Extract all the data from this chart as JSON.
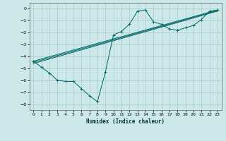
{
  "xlabel": "Humidex (Indice chaleur)",
  "background_color": "#cce8e8",
  "grid_color": "#aacccc",
  "line_color": "#006666",
  "xlim": [
    -0.5,
    23.5
  ],
  "ylim": [
    -8.5,
    0.5
  ],
  "xticks": [
    0,
    1,
    2,
    3,
    4,
    5,
    6,
    7,
    8,
    9,
    10,
    11,
    12,
    13,
    14,
    15,
    16,
    17,
    18,
    19,
    20,
    21,
    22,
    23
  ],
  "yticks": [
    0,
    -1,
    -2,
    -3,
    -4,
    -5,
    -6,
    -7,
    -8
  ],
  "series": [
    {
      "x": [
        0,
        1,
        2,
        3,
        4,
        5,
        6,
        7,
        8,
        9,
        10,
        11,
        12,
        13,
        14,
        15,
        16,
        17,
        18,
        19,
        20,
        21,
        22,
        23
      ],
      "y": [
        -4.4,
        -4.9,
        -5.4,
        -6.0,
        -6.1,
        -6.1,
        -6.7,
        -7.3,
        -7.8,
        -5.3,
        -2.2,
        -1.9,
        -1.3,
        -0.2,
        -0.1,
        -1.1,
        -1.3,
        -1.7,
        -1.8,
        -1.6,
        -1.4,
        -0.9,
        -0.2,
        -0.1
      ],
      "marker": "+"
    },
    {
      "x": [
        0,
        23
      ],
      "y": [
        -4.4,
        -0.1
      ]
    },
    {
      "x": [
        0,
        23
      ],
      "y": [
        -4.5,
        -0.15
      ]
    },
    {
      "x": [
        0,
        23
      ],
      "y": [
        -4.6,
        -0.2
      ]
    }
  ]
}
